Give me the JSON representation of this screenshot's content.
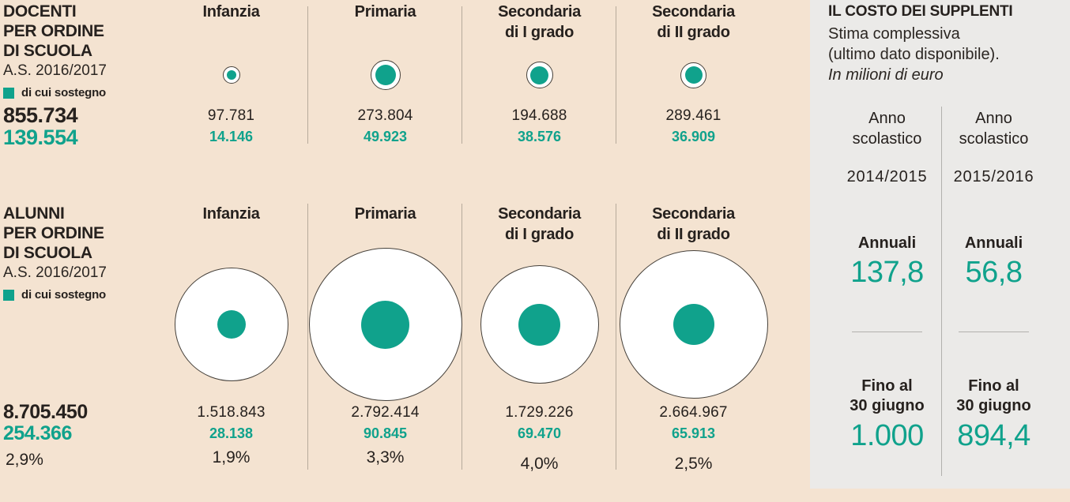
{
  "colors": {
    "background": "#f4e3d1",
    "panel": "#ebeae8",
    "accent_teal": "#10a28c",
    "text_dark": "#26211e"
  },
  "docenti": {
    "title_lines": [
      "DOCENTI",
      "PER ORDINE",
      "DI SCUOLA"
    ],
    "subtitle": "A.S. 2016/2017",
    "legend_label": "di cui sostegno",
    "total": "855.734",
    "total_sostegno": "139.554",
    "columns": [
      {
        "label_lines": [
          "Infanzia",
          ""
        ],
        "value": "97.781",
        "sostegno": "14.146",
        "outer_d": 20,
        "inner_d": 12
      },
      {
        "label_lines": [
          "Primaria",
          ""
        ],
        "value": "273.804",
        "sostegno": "49.923",
        "outer_d": 36,
        "inner_d": 26
      },
      {
        "label_lines": [
          "Secondaria",
          "di I grado"
        ],
        "value": "194.688",
        "sostegno": "38.576",
        "outer_d": 32,
        "inner_d": 23
      },
      {
        "label_lines": [
          "Secondaria",
          "di II grado"
        ],
        "value": "289.461",
        "sostegno": "36.909",
        "outer_d": 31,
        "inner_d": 22
      }
    ]
  },
  "alunni": {
    "title_lines": [
      "ALUNNI",
      "PER ORDINE",
      "DI SCUOLA"
    ],
    "subtitle": "A.S. 2016/2017",
    "legend_label": "di cui sostegno",
    "total": "8.705.450",
    "total_sostegno": "254.366",
    "total_pct": "2,9%",
    "columns": [
      {
        "label_lines": [
          "Infanzia",
          ""
        ],
        "value": "1.518.843",
        "sostegno": "28.138",
        "pct": "1,9%",
        "outer_d": 142,
        "inner_d": 36
      },
      {
        "label_lines": [
          "Primaria",
          ""
        ],
        "value": "2.792.414",
        "sostegno": "90.845",
        "pct": "3,3%",
        "outer_d": 192,
        "inner_d": 61
      },
      {
        "label_lines": [
          "Secondaria",
          "di I grado"
        ],
        "value": "1.729.226",
        "sostegno": "69.470",
        "pct": "4,0%",
        "outer_d": 148,
        "inner_d": 53
      },
      {
        "label_lines": [
          "Secondaria",
          "di II grado"
        ],
        "value": "2.664.967",
        "sostegno": "65.913",
        "pct": "2,5%",
        "outer_d": 186,
        "inner_d": 52
      }
    ]
  },
  "costo": {
    "title": "IL COSTO DEI SUPPLENTI",
    "subtitle_lines": [
      "Stima complessiva",
      "(ultimo dato disponibile)."
    ],
    "unit_note": "In milioni di euro",
    "columns": [
      {
        "period_lines": [
          "Anno",
          "scolastico"
        ],
        "year": "2014/2015",
        "annual_label": "Annuali",
        "annual_value": "137,8",
        "june_label_lines": [
          "Fino al",
          "30 giugno"
        ],
        "june_value": "1.000"
      },
      {
        "period_lines": [
          "Anno",
          "scolastico"
        ],
        "year": "2015/2016",
        "annual_label": "Annuali",
        "annual_value": "56,8",
        "june_label_lines": [
          "Fino al",
          "30 giugno"
        ],
        "june_value": "894,4"
      }
    ]
  },
  "chart_data": [
    {
      "type": "scatter",
      "subtype": "proportional-bubble",
      "title": "DOCENTI PER ORDINE DI SCUOLA A.S. 2016/2017",
      "categories": [
        "Infanzia",
        "Primaria",
        "Secondaria di I grado",
        "Secondaria di II grado"
      ],
      "series": [
        {
          "name": "Docenti",
          "values": [
            97781,
            273804,
            194688,
            289461
          ]
        },
        {
          "name": "di cui sostegno",
          "values": [
            14146,
            49923,
            38576,
            36909
          ]
        }
      ],
      "totals": {
        "docenti": 855734,
        "di_cui_sostegno": 139554
      },
      "encoding": "circle area proportional to value; white outer = total, teal inner = sostegno",
      "legend_position": "top-left"
    },
    {
      "type": "scatter",
      "subtype": "proportional-bubble",
      "title": "ALUNNI PER ORDINE DI SCUOLA A.S. 2016/2017",
      "categories": [
        "Infanzia",
        "Primaria",
        "Secondaria di I grado",
        "Secondaria di II grado"
      ],
      "series": [
        {
          "name": "Alunni",
          "values": [
            1518843,
            2792414,
            1729226,
            2664967
          ]
        },
        {
          "name": "di cui sostegno",
          "values": [
            28138,
            90845,
            69470,
            65913
          ]
        },
        {
          "name": "% sostegno",
          "values": [
            1.9,
            3.3,
            4.0,
            2.5
          ]
        }
      ],
      "totals": {
        "alunni": 8705450,
        "di_cui_sostegno": 254366,
        "pct_sostegno": 2.9
      },
      "encoding": "circle area proportional to value; white outer = total, teal inner = sostegno",
      "legend_position": "top-left"
    },
    {
      "type": "table",
      "title": "IL COSTO DEI SUPPLENTI - Stima complessiva (ultimo dato disponibile). In milioni di euro",
      "columns": [
        "Anno scolastico 2014/2015",
        "Anno scolastico 2015/2016"
      ],
      "rows": [
        {
          "label": "Annuali",
          "values": [
            137.8,
            56.8
          ]
        },
        {
          "label": "Fino al 30 giugno",
          "values": [
            1000.0,
            894.4
          ]
        }
      ]
    }
  ]
}
